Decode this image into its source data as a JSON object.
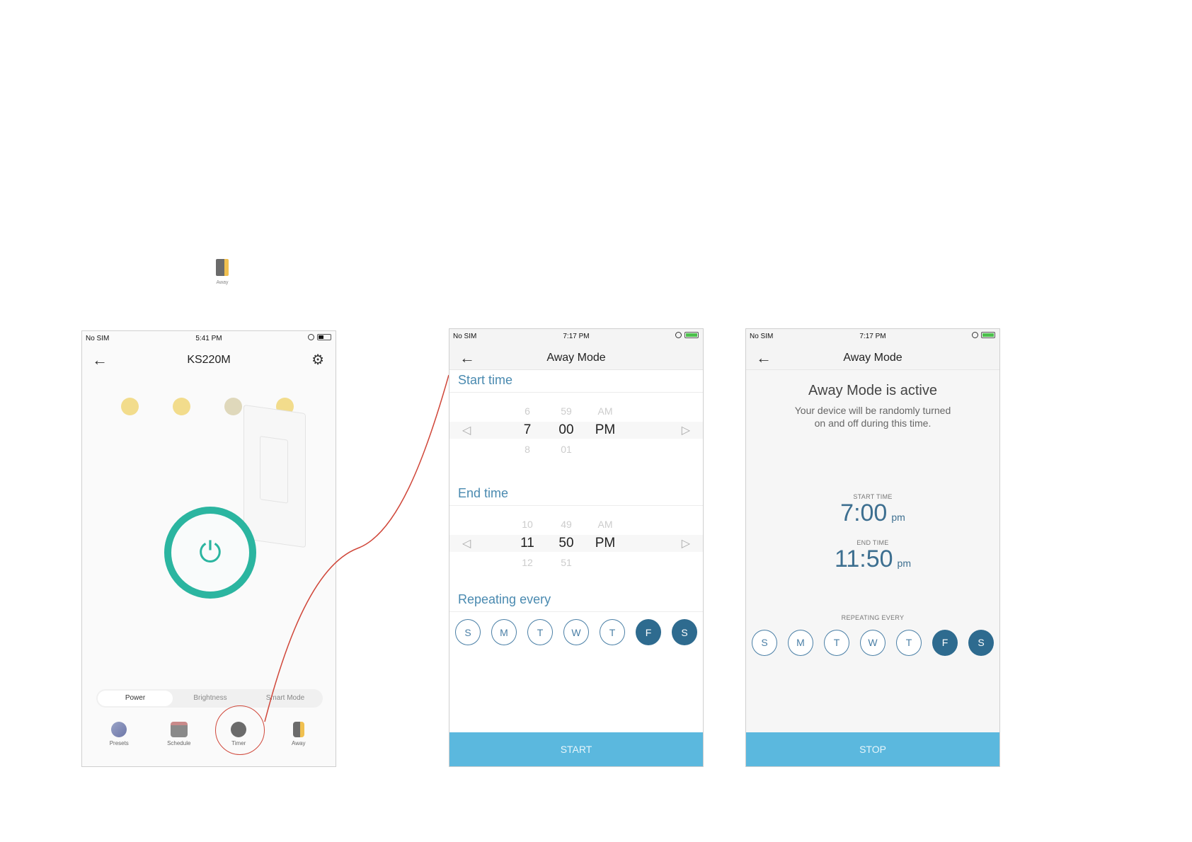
{
  "floating_icon": {
    "label": "Away",
    "icon": "away-icon"
  },
  "phone1": {
    "status": {
      "carrier": "No SIM",
      "time": "5:41 PM"
    },
    "title": "KS220M",
    "segments": [
      "Power",
      "Brightness",
      "Smart Mode"
    ],
    "tabs": [
      {
        "label": "Presets",
        "icon": "presets-icon"
      },
      {
        "label": "Schedule",
        "icon": "schedule-icon"
      },
      {
        "label": "Timer",
        "icon": "timer-icon"
      },
      {
        "label": "Away",
        "icon": "away-icon"
      }
    ],
    "accent_color": "#2bb5a0",
    "highlight_color": "#d0473a"
  },
  "phone2": {
    "status": {
      "carrier": "No SIM",
      "time": "7:17 PM"
    },
    "title": "Away Mode",
    "start_label": "Start time",
    "start_picker": {
      "hours": [
        "6",
        "7",
        "8"
      ],
      "minutes": [
        "59",
        "00",
        "01"
      ],
      "ampm": [
        "AM",
        "PM"
      ]
    },
    "end_label": "End time",
    "end_picker": {
      "hours": [
        "10",
        "11",
        "12"
      ],
      "minutes": [
        "49",
        "50",
        "51"
      ],
      "ampm": [
        "AM",
        "PM"
      ]
    },
    "repeat_label": "Repeating every",
    "days": [
      {
        "label": "S",
        "on": false
      },
      {
        "label": "M",
        "on": false
      },
      {
        "label": "T",
        "on": false
      },
      {
        "label": "W",
        "on": false
      },
      {
        "label": "T",
        "on": false
      },
      {
        "label": "F",
        "on": true
      },
      {
        "label": "S",
        "on": true
      }
    ],
    "button": "START"
  },
  "phone3": {
    "status": {
      "carrier": "No SIM",
      "time": "7:17 PM"
    },
    "title": "Away Mode",
    "heading": "Away Mode is active",
    "subtext": "Your device will be randomly turned on and off during this time.",
    "start_cap": "START TIME",
    "start_time": "7:00",
    "start_ampm": "pm",
    "end_cap": "END TIME",
    "end_time": "11:50",
    "end_ampm": "pm",
    "repeat_cap": "REPEATING EVERY",
    "days": [
      {
        "label": "S",
        "on": false
      },
      {
        "label": "M",
        "on": false
      },
      {
        "label": "T",
        "on": false
      },
      {
        "label": "W",
        "on": false
      },
      {
        "label": "T",
        "on": false
      },
      {
        "label": "F",
        "on": true
      },
      {
        "label": "S",
        "on": true
      }
    ],
    "button": "STOP",
    "button_color": "#5bb8de",
    "day_on_color": "#2e6b8f"
  }
}
